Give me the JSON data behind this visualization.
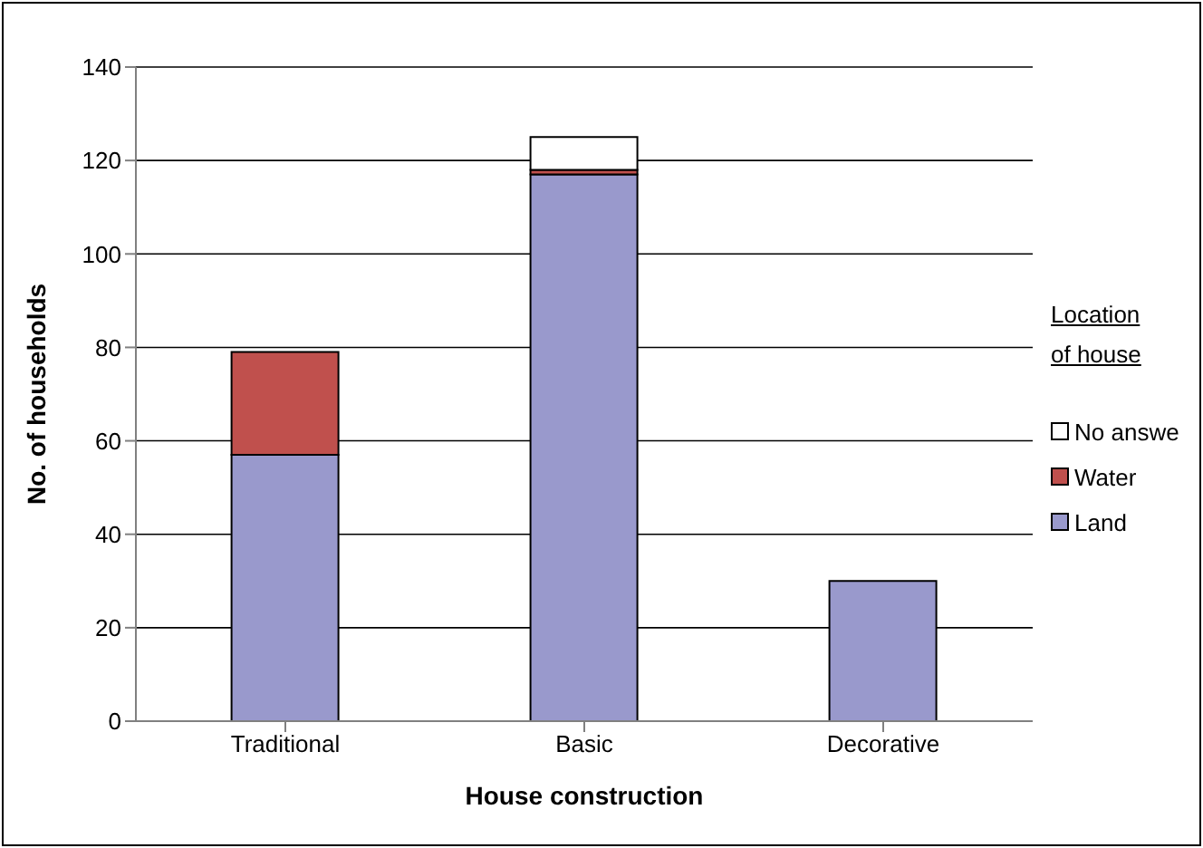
{
  "chart_data": {
    "type": "bar",
    "stacked": true,
    "xlabel": "House construction",
    "ylabel": "No. of households",
    "legend_title": "Location of house",
    "legend": "right",
    "categories": [
      "Traditional",
      "Basic",
      "Decorative"
    ],
    "series": [
      {
        "name": "Land",
        "color": "#9999cc",
        "values": [
          57,
          117,
          30
        ]
      },
      {
        "name": "Water",
        "color": "#c0504d",
        "values": [
          22,
          1,
          null
        ]
      },
      {
        "name": "No answe",
        "color": "#ffffff",
        "values": [
          null,
          7,
          null
        ]
      }
    ],
    "ylim": [
      0,
      140
    ],
    "yticks": [
      0,
      20,
      40,
      60,
      80,
      100,
      120,
      140
    ],
    "grid": "y"
  }
}
